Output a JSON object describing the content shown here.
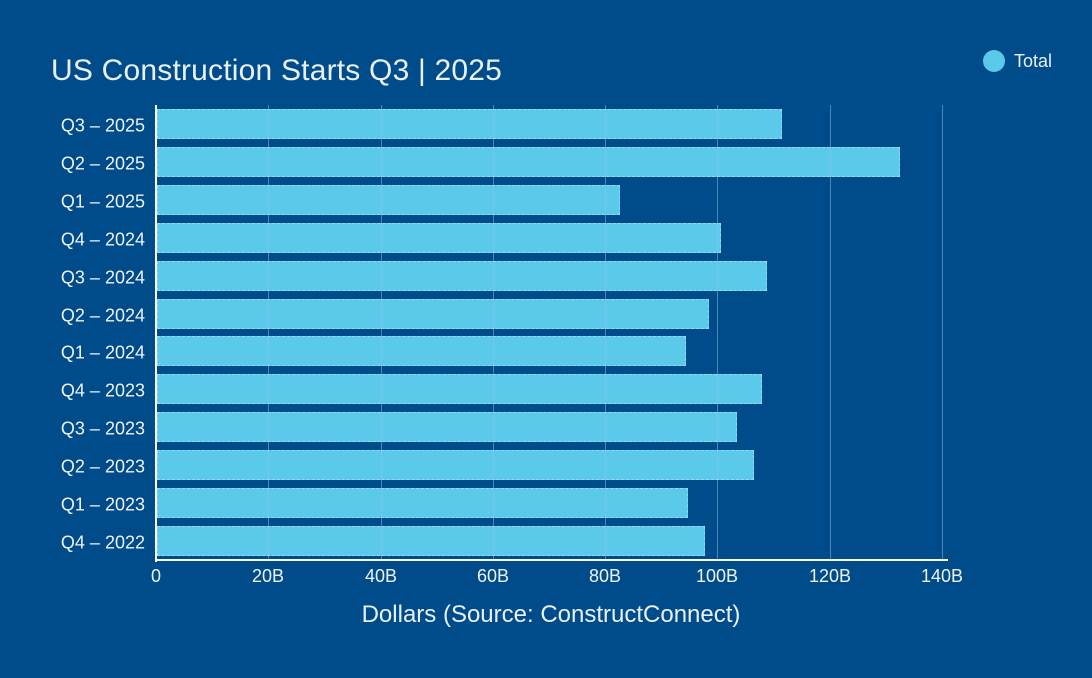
{
  "colors": {
    "background": "#004B8A",
    "bar": "#5BC9EA",
    "axis": "#FFFFFF",
    "text": "#E9F1F8",
    "gridline": "rgba(150,195,228,0.5)"
  },
  "legend": {
    "position": "top-right",
    "marker": "circle-icon"
  },
  "chart_data": {
    "type": "bar",
    "orientation": "horizontal",
    "title": "US Construction Starts Q3 | 2025",
    "xlabel": "Dollars (Source: ConstructConnect)",
    "ylabel": "",
    "unit": "B",
    "categories": [
      "Q3 – 2025",
      "Q2 – 2025",
      "Q1 – 2025",
      "Q4 – 2024",
      "Q3 – 2024",
      "Q2 – 2024",
      "Q1 – 2024",
      "Q4 – 2023",
      "Q3 – 2023",
      "Q2 – 2023",
      "Q1 – 2023",
      "Q4 – 2022"
    ],
    "series": [
      {
        "name": "Total",
        "color": "#5BC9EA",
        "values": [
          111.4,
          132.4,
          82.4,
          100.4,
          108.7,
          98.4,
          94.3,
          107.8,
          103.4,
          106.3,
          94.5,
          97.6
        ]
      }
    ],
    "x_ticks": [
      {
        "value": 0,
        "label": "0"
      },
      {
        "value": 20,
        "label": "20B"
      },
      {
        "value": 40,
        "label": "40B"
      },
      {
        "value": 60,
        "label": "60B"
      },
      {
        "value": 80,
        "label": "80B"
      },
      {
        "value": 100,
        "label": "100B"
      },
      {
        "value": 120,
        "label": "120B"
      },
      {
        "value": 140,
        "label": "140B"
      }
    ],
    "xlim": [
      0,
      140.9
    ],
    "grid": "vertical",
    "legend_position": "top-right"
  }
}
